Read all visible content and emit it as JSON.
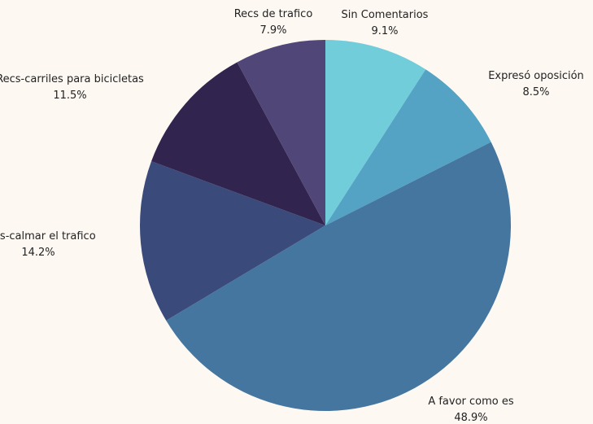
{
  "chart_data": {
    "type": "pie",
    "slices": [
      {
        "label": "Sin Comentarios",
        "pct_label": "9.1%",
        "value": 9.1,
        "color": "#72cddb"
      },
      {
        "label": "Expresó oposición",
        "pct_label": "8.5%",
        "value": 8.5,
        "color": "#54a3c4"
      },
      {
        "label": "A favor como es",
        "pct_label": "48.9%",
        "value": 48.9,
        "color": "#4576a0"
      },
      {
        "label": "Recs-calmar el trafico",
        "pct_label": "14.2%",
        "value": 14.2,
        "color": "#3a4b7b"
      },
      {
        "label": "Recs-carriles para bicicletas",
        "pct_label": "11.5%",
        "value": 11.5,
        "color": "#31244e"
      },
      {
        "label": "Recs de trafico",
        "pct_label": "7.9%",
        "value": 7.9,
        "color": "#504677"
      }
    ],
    "start": "top",
    "direction": "clockwise",
    "background": "#fdf8f2"
  }
}
